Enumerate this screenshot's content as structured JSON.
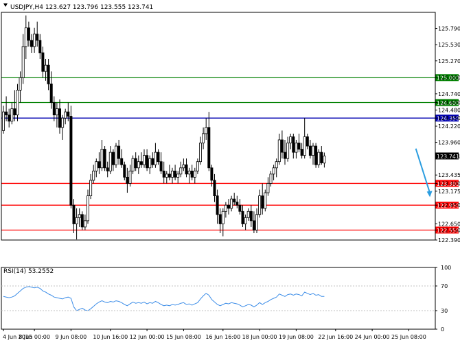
{
  "header": {
    "symbol_line": "USDJPY,H4  123.627 123.796 123.555 123.741",
    "rsi_label": "RSI(14) 53.2552"
  },
  "colors": {
    "bull_candle": "#ffffff",
    "bear_candle": "#000000",
    "support_line": "#ff0000",
    "resistance_line": "#008000",
    "pivot_line": "#0000b0",
    "rsi_line": "#3c8de8",
    "arrow": "#2a9de0"
  },
  "chart_data": [
    {
      "type": "candlestick",
      "title": "USDJPY,H4",
      "ohlc_header": {
        "open": 123.627,
        "high": 123.796,
        "low": 123.555,
        "close": 123.741
      },
      "ylim": [
        122.39,
        126.05
      ],
      "y_ticks": [
        "125.790",
        "125.530",
        "125.270",
        "125.000",
        "124.740",
        "124.600",
        "124.480",
        "124.350",
        "124.220",
        "123.960",
        "123.741",
        "123.435",
        "123.300",
        "123.175",
        "122.950",
        "122.650",
        "122.550",
        "122.390"
      ],
      "x_ticks": [
        {
          "label": "4 Jun 2015",
          "index": 0
        },
        {
          "label": "8 Jun 00:00",
          "index": 11
        },
        {
          "label": "9 Jun 08:00",
          "index": 24
        },
        {
          "label": "10 Jun 16:00",
          "index": 38
        },
        {
          "label": "12 Jun 00:00",
          "index": 51
        },
        {
          "label": "15 Jun 08:00",
          "index": 64
        },
        {
          "label": "16 Jun 16:00",
          "index": 78
        },
        {
          "label": "18 Jun 00:00",
          "index": 91
        },
        {
          "label": "19 Jun 08:00",
          "index": 104
        },
        {
          "label": "22 Jun 16:00",
          "index": 118
        },
        {
          "label": "24 Jun 00:00",
          "index": 131
        },
        {
          "label": "25 Jun 08:00",
          "index": 144
        }
      ],
      "horizontal_levels": [
        {
          "value": 125.0,
          "label": "125.000",
          "kind": "resistance"
        },
        {
          "value": 124.6,
          "label": "124.600",
          "kind": "resistance"
        },
        {
          "value": 124.35,
          "label": "124.350",
          "kind": "pivot"
        },
        {
          "value": 123.3,
          "label": "123.300",
          "kind": "support"
        },
        {
          "value": 122.95,
          "label": "122.950",
          "kind": "support"
        },
        {
          "value": 122.55,
          "label": "122.550",
          "kind": "support"
        }
      ],
      "current_price": {
        "value": 123.741,
        "label": "123.741"
      },
      "arrow": {
        "from_index": 146.5,
        "from_value": 123.86,
        "to_index": 151.5,
        "to_value": 123.08
      },
      "ohlc": [
        [
          124.15,
          124.55,
          124.1,
          124.45
        ],
        [
          124.45,
          124.7,
          124.3,
          124.4
        ],
        [
          124.4,
          124.5,
          124.2,
          124.3
        ],
        [
          124.3,
          124.6,
          124.25,
          124.5
        ],
        [
          124.5,
          124.8,
          124.3,
          124.4
        ],
        [
          124.4,
          124.9,
          124.3,
          124.8
        ],
        [
          124.8,
          125.1,
          124.6,
          125.0
        ],
        [
          125.0,
          125.7,
          124.9,
          125.5
        ],
        [
          125.5,
          126.0,
          125.3,
          125.8
        ],
        [
          125.8,
          125.9,
          125.5,
          125.6
        ],
        [
          125.6,
          125.7,
          125.4,
          125.5
        ],
        [
          125.5,
          125.8,
          125.4,
          125.7
        ],
        [
          125.7,
          125.9,
          125.5,
          125.6
        ],
        [
          125.6,
          125.7,
          125.3,
          125.4
        ],
        [
          125.4,
          125.5,
          125.0,
          125.1
        ],
        [
          125.1,
          125.3,
          124.95,
          125.2
        ],
        [
          125.2,
          125.3,
          124.8,
          124.9
        ],
        [
          124.9,
          125.1,
          124.5,
          124.6
        ],
        [
          124.6,
          124.7,
          124.3,
          124.4
        ],
        [
          124.4,
          124.6,
          124.2,
          124.5
        ],
        [
          124.5,
          124.65,
          124.1,
          124.2
        ],
        [
          124.2,
          124.4,
          124.0,
          124.35
        ],
        [
          124.35,
          124.5,
          124.25,
          124.45
        ],
        [
          124.45,
          124.6,
          124.3,
          124.38
        ],
        [
          124.38,
          124.55,
          122.9,
          122.95
        ],
        [
          122.95,
          123.05,
          122.5,
          122.65
        ],
        [
          122.65,
          122.9,
          122.4,
          122.75
        ],
        [
          122.75,
          122.9,
          122.6,
          122.8
        ],
        [
          122.8,
          122.85,
          122.55,
          122.6
        ],
        [
          122.6,
          122.8,
          122.55,
          122.7
        ],
        [
          122.7,
          123.2,
          122.65,
          123.1
        ],
        [
          123.1,
          123.45,
          123.05,
          123.35
        ],
        [
          123.35,
          123.6,
          123.3,
          123.5
        ],
        [
          123.5,
          123.7,
          123.4,
          123.65
        ],
        [
          123.65,
          123.8,
          123.45,
          123.55
        ],
        [
          123.55,
          124.0,
          123.5,
          123.85
        ],
        [
          123.85,
          123.9,
          123.5,
          123.55
        ],
        [
          123.55,
          123.65,
          123.4,
          123.5
        ],
        [
          123.5,
          123.9,
          123.45,
          123.8
        ],
        [
          123.8,
          123.85,
          123.5,
          123.6
        ],
        [
          123.6,
          123.95,
          123.55,
          123.9
        ],
        [
          123.9,
          124.0,
          123.6,
          123.7
        ],
        [
          123.7,
          123.85,
          123.55,
          123.6
        ],
        [
          123.6,
          123.65,
          123.35,
          123.4
        ],
        [
          123.4,
          123.55,
          123.15,
          123.3
        ],
        [
          123.3,
          123.6,
          123.25,
          123.5
        ],
        [
          123.5,
          123.75,
          123.45,
          123.7
        ],
        [
          123.7,
          123.8,
          123.5,
          123.55
        ],
        [
          123.55,
          123.75,
          123.45,
          123.65
        ],
        [
          123.65,
          123.8,
          123.55,
          123.6
        ],
        [
          123.6,
          123.85,
          123.55,
          123.75
        ],
        [
          123.75,
          123.85,
          123.5,
          123.55
        ],
        [
          123.55,
          123.75,
          123.45,
          123.7
        ],
        [
          123.7,
          123.8,
          123.55,
          123.6
        ],
        [
          123.6,
          123.95,
          123.55,
          123.8
        ],
        [
          123.8,
          123.85,
          123.6,
          123.65
        ],
        [
          123.65,
          123.8,
          123.45,
          123.5
        ],
        [
          123.5,
          123.65,
          123.3,
          123.4
        ],
        [
          123.4,
          123.5,
          123.3,
          123.45
        ],
        [
          123.45,
          123.6,
          123.35,
          123.4
        ],
        [
          123.4,
          123.55,
          123.3,
          123.5
        ],
        [
          123.5,
          123.6,
          123.35,
          123.4
        ],
        [
          123.4,
          123.5,
          123.3,
          123.45
        ],
        [
          123.45,
          123.65,
          123.4,
          123.55
        ],
        [
          123.55,
          123.7,
          123.5,
          123.6
        ],
        [
          123.6,
          123.7,
          123.4,
          123.45
        ],
        [
          123.45,
          123.55,
          123.3,
          123.5
        ],
        [
          123.5,
          123.6,
          123.35,
          123.4
        ],
        [
          123.4,
          123.55,
          123.3,
          123.5
        ],
        [
          123.5,
          123.7,
          123.45,
          123.65
        ],
        [
          123.65,
          124.05,
          123.6,
          123.95
        ],
        [
          123.95,
          124.2,
          123.85,
          124.1
        ],
        [
          124.1,
          124.35,
          124.0,
          124.2
        ],
        [
          124.2,
          124.45,
          123.5,
          123.55
        ],
        [
          123.55,
          123.6,
          123.25,
          123.35
        ],
        [
          123.35,
          123.45,
          123.0,
          123.1
        ],
        [
          123.1,
          123.2,
          122.65,
          122.8
        ],
        [
          122.8,
          122.9,
          122.5,
          122.65
        ],
        [
          122.65,
          122.9,
          122.45,
          122.85
        ],
        [
          122.85,
          123.0,
          122.75,
          122.95
        ],
        [
          122.95,
          123.05,
          122.8,
          122.9
        ],
        [
          122.9,
          123.1,
          122.85,
          123.05
        ],
        [
          123.05,
          123.15,
          122.95,
          123.0
        ],
        [
          123.0,
          123.1,
          122.9,
          122.95
        ],
        [
          122.95,
          123.05,
          122.8,
          122.85
        ],
        [
          122.85,
          122.95,
          122.6,
          122.65
        ],
        [
          122.65,
          122.8,
          122.55,
          122.75
        ],
        [
          122.75,
          122.9,
          122.7,
          122.85
        ],
        [
          122.85,
          122.95,
          122.6,
          122.7
        ],
        [
          122.7,
          122.85,
          122.5,
          122.55
        ],
        [
          122.55,
          122.9,
          122.5,
          122.8
        ],
        [
          122.8,
          123.2,
          122.75,
          123.1
        ],
        [
          123.1,
          123.3,
          122.8,
          122.9
        ],
        [
          122.9,
          123.2,
          122.85,
          123.15
        ],
        [
          123.15,
          123.4,
          123.1,
          123.3
        ],
        [
          123.3,
          123.5,
          123.25,
          123.45
        ],
        [
          123.45,
          123.6,
          123.35,
          123.55
        ],
        [
          123.55,
          123.7,
          123.4,
          123.65
        ],
        [
          123.65,
          124.1,
          123.6,
          124.0
        ],
        [
          124.0,
          124.15,
          123.7,
          123.8
        ],
        [
          123.8,
          124.0,
          123.6,
          123.7
        ],
        [
          123.7,
          124.05,
          123.65,
          123.95
        ],
        [
          123.95,
          124.1,
          123.85,
          124.05
        ],
        [
          124.05,
          124.1,
          123.7,
          123.8
        ],
        [
          123.8,
          124.0,
          123.7,
          123.95
        ],
        [
          123.95,
          124.1,
          123.8,
          123.85
        ],
        [
          123.85,
          123.95,
          123.7,
          123.75
        ],
        [
          123.75,
          124.35,
          123.7,
          124.05
        ],
        [
          124.05,
          124.1,
          123.85,
          123.9
        ],
        [
          123.9,
          124.0,
          123.7,
          123.75
        ],
        [
          123.75,
          123.95,
          123.6,
          123.9
        ],
        [
          123.9,
          123.95,
          123.55,
          123.6
        ],
        [
          123.6,
          123.85,
          123.55,
          123.8
        ],
        [
          123.8,
          123.9,
          123.6,
          123.63
        ],
        [
          123.627,
          123.796,
          123.555,
          123.741
        ]
      ]
    },
    {
      "type": "line",
      "title": "RSI(14) 53.2552",
      "ylim": [
        0,
        100
      ],
      "y_ticks": [
        "100",
        "70",
        "30",
        "0"
      ],
      "values": [
        53,
        52,
        51,
        52,
        54,
        58,
        62,
        66,
        68,
        69,
        68,
        67,
        68,
        66,
        62,
        60,
        57,
        55,
        52,
        51,
        50,
        49,
        51,
        52,
        50,
        36,
        30,
        32,
        34,
        31,
        30,
        33,
        37,
        41,
        44,
        46,
        44,
        43,
        45,
        44,
        46,
        45,
        43,
        40,
        38,
        41,
        44,
        42,
        43,
        42,
        44,
        41,
        43,
        42,
        45,
        43,
        40,
        38,
        39,
        38,
        40,
        39,
        40,
        42,
        43,
        40,
        41,
        39,
        41,
        43,
        49,
        54,
        58,
        55,
        48,
        44,
        40,
        38,
        40,
        42,
        41,
        43,
        42,
        41,
        39,
        36,
        38,
        40,
        39,
        36,
        39,
        43,
        40,
        43,
        45,
        48,
        50,
        52,
        57,
        55,
        53,
        56,
        57,
        55,
        57,
        56,
        54,
        60,
        58,
        56,
        58,
        55,
        56,
        53,
        53
      ]
    }
  ]
}
